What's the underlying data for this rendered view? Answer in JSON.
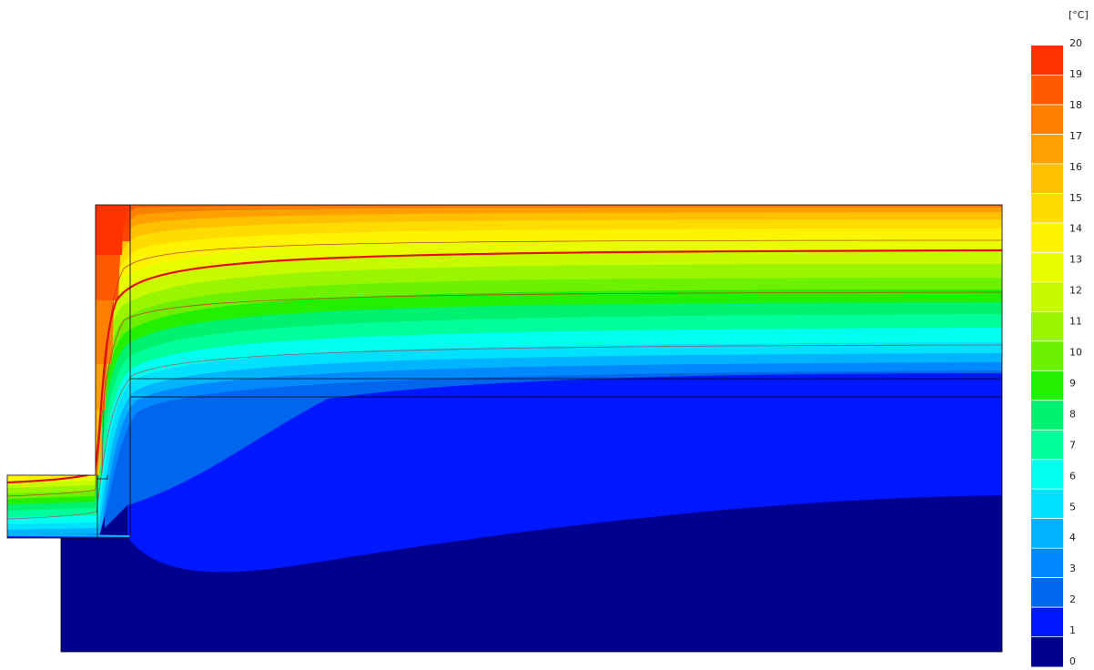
{
  "legend": {
    "unit": "[°C]",
    "ticks": [
      "0",
      "1",
      "2",
      "3",
      "4",
      "5",
      "6",
      "7",
      "8",
      "9",
      "10",
      "11",
      "12",
      "13",
      "14",
      "15",
      "16",
      "17",
      "18",
      "19",
      "20"
    ],
    "colors": [
      "#00008e",
      "#0018ff",
      "#0066ee",
      "#0088ff",
      "#00b4ff",
      "#00e0ff",
      "#00ffee",
      "#00ff9a",
      "#00f070",
      "#22f000",
      "#6cf200",
      "#9af600",
      "#c8fa00",
      "#e8ff00",
      "#fff400",
      "#ffdc00",
      "#ffc000",
      "#ffa000",
      "#ff8000",
      "#ff5a00",
      "#ff3200"
    ]
  }
}
